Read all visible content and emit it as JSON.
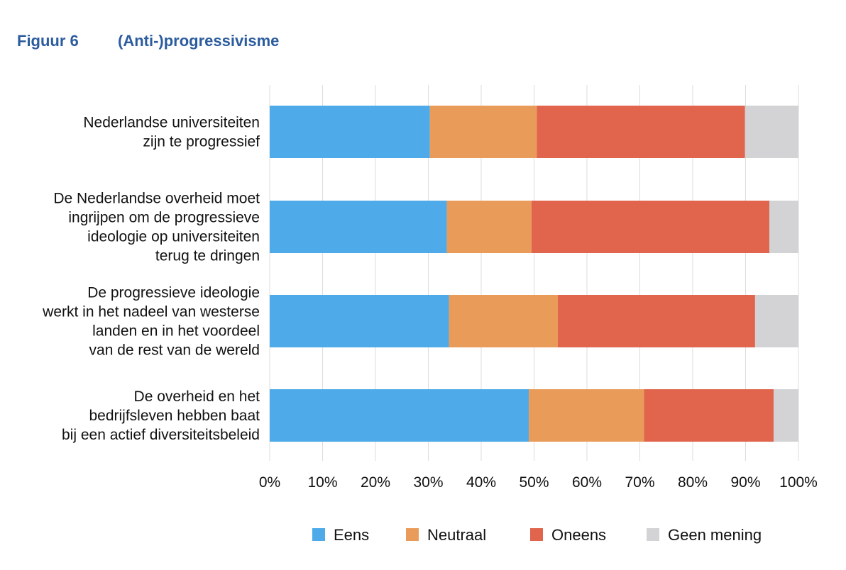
{
  "figure_number": "Figuur 6",
  "title": "(Anti-)progressivisme",
  "colors": {
    "Eens": "#4eaae8",
    "Neutraal": "#e99c5a",
    "Oneens": "#e0654c",
    "Geen mening": "#d3d3d5",
    "title": "#2b5c9e",
    "grid": "#dcdcdc"
  },
  "chart_data": {
    "type": "bar",
    "orientation": "horizontal",
    "stacked": true,
    "title": "(Anti-)progressivisme",
    "xlabel": "",
    "ylabel": "",
    "xlim": [
      0,
      100
    ],
    "x_ticks": [
      "0%",
      "10%",
      "20%",
      "30%",
      "40%",
      "50%",
      "60%",
      "70%",
      "80%",
      "90%",
      "100%"
    ],
    "grid": true,
    "legend_position": "bottom",
    "categories": [
      [
        "Nederlandse universiteiten",
        "zijn te progressief"
      ],
      [
        "De Nederlandse overheid moet",
        "ingrijpen om de progressieve",
        "ideologie op universiteiten",
        "terug te dringen"
      ],
      [
        "De progressieve ideologie",
        "werkt in het nadeel van westerse",
        "landen en in het voordeel",
        "van de rest van de wereld"
      ],
      [
        "De overheid en het",
        "bedrijfsleven hebben baat",
        "bij een actief diversiteitsbeleid"
      ]
    ],
    "series": [
      {
        "name": "Eens",
        "values": [
          30.3,
          33.5,
          33.9,
          49.0
        ]
      },
      {
        "name": "Neutraal",
        "values": [
          20.2,
          16.0,
          20.6,
          21.8
        ]
      },
      {
        "name": "Oneens",
        "values": [
          39.4,
          45.0,
          37.3,
          24.5
        ]
      },
      {
        "name": "Geen mening",
        "values": [
          10.1,
          5.5,
          8.2,
          4.7
        ]
      }
    ]
  }
}
